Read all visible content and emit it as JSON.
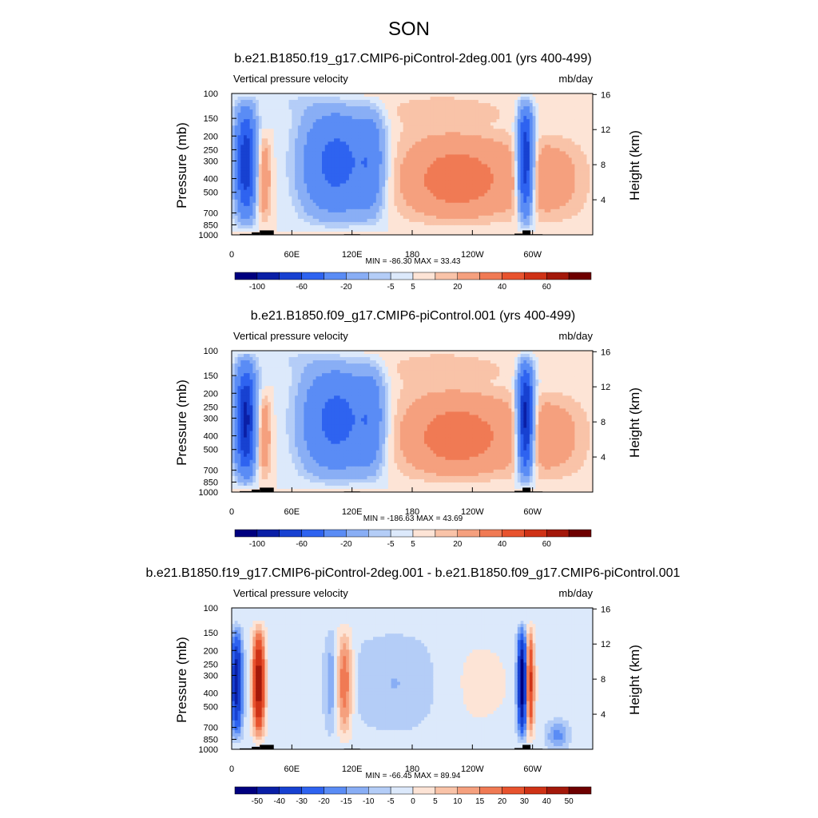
{
  "figure": {
    "title": "SON"
  },
  "chart_data": [
    {
      "type": "heatmap",
      "title": "b.e21.B1850.f19_g17.CMIP6-piControl-2deg.001 (yrs 400-499)",
      "left_label": "Vertical pressure velocity",
      "right_label": "mb/day",
      "ylabel": "Pressure (mb)",
      "y2label": "Height (km)",
      "pressure_ticks": [
        "100",
        "150",
        "200",
        "250",
        "300",
        "400",
        "500",
        "700",
        "850",
        "1000"
      ],
      "height_ticks": [
        "16",
        "12",
        "8",
        "4"
      ],
      "lon_ticks": [
        "0",
        "60E",
        "120E",
        "180",
        "120W",
        "60W"
      ],
      "min_max_text": "MIN = -86.30  MAX =  33.43",
      "min": -86.3,
      "max": 33.43,
      "colorbar_labels": [
        "-100",
        "-60",
        "-20",
        "-5",
        "5",
        "20",
        "40",
        "60"
      ],
      "levels": [
        -100,
        -80,
        -60,
        -40,
        -20,
        -10,
        -5,
        0,
        5,
        10,
        20,
        30,
        40,
        50,
        60
      ]
    },
    {
      "type": "heatmap",
      "title": "b.e21.B1850.f09_g17.CMIP6-piControl.001 (yrs 400-499)",
      "left_label": "Vertical pressure velocity",
      "right_label": "mb/day",
      "ylabel": "Pressure (mb)",
      "y2label": "Height (km)",
      "pressure_ticks": [
        "100",
        "150",
        "200",
        "250",
        "300",
        "400",
        "500",
        "700",
        "850",
        "1000"
      ],
      "height_ticks": [
        "16",
        "12",
        "8",
        "4"
      ],
      "lon_ticks": [
        "0",
        "60E",
        "120E",
        "180",
        "120W",
        "60W"
      ],
      "min_max_text": "MIN = -186.63  MAX =  43.69",
      "min": -186.63,
      "max": 43.69,
      "colorbar_labels": [
        "-100",
        "-60",
        "-20",
        "-5",
        "5",
        "20",
        "40",
        "60"
      ],
      "levels": [
        -100,
        -80,
        -60,
        -40,
        -20,
        -10,
        -5,
        0,
        5,
        10,
        20,
        30,
        40,
        50,
        60
      ]
    },
    {
      "type": "heatmap",
      "title": "b.e21.B1850.f19_g17.CMIP6-piControl-2deg.001 - b.e21.B1850.f09_g17.CMIP6-piControl.001",
      "left_label": "Vertical pressure velocity",
      "right_label": "mb/day",
      "ylabel": "Pressure (mb)",
      "y2label": "Height (km)",
      "pressure_ticks": [
        "100",
        "150",
        "200",
        "250",
        "300",
        "400",
        "500",
        "700",
        "850",
        "1000"
      ],
      "height_ticks": [
        "16",
        "12",
        "8",
        "4"
      ],
      "lon_ticks": [
        "0",
        "60E",
        "120E",
        "180",
        "120W",
        "60W"
      ],
      "min_max_text": "MIN = -66.45  MAX =  89.94",
      "min": -66.45,
      "max": 89.94,
      "colorbar_labels": [
        "-50",
        "-40",
        "-30",
        "-20",
        "-15",
        "-10",
        "-5",
        "0",
        "5",
        "10",
        "15",
        "20",
        "30",
        "40",
        "50"
      ],
      "levels": [
        -50,
        -40,
        -30,
        -20,
        -15,
        -10,
        -5,
        0,
        5,
        10,
        15,
        20,
        30,
        40,
        50
      ]
    }
  ],
  "colormap": [
    "#00007f",
    "#0a1fa6",
    "#1741d1",
    "#2e63f0",
    "#5a8cf5",
    "#89aef5",
    "#b4cdf7",
    "#dce9fb",
    "#fde4d6",
    "#f9c3a8",
    "#f5a07e",
    "#f07a54",
    "#e8532e",
    "#cf3216",
    "#a3180a",
    "#6e0000"
  ]
}
